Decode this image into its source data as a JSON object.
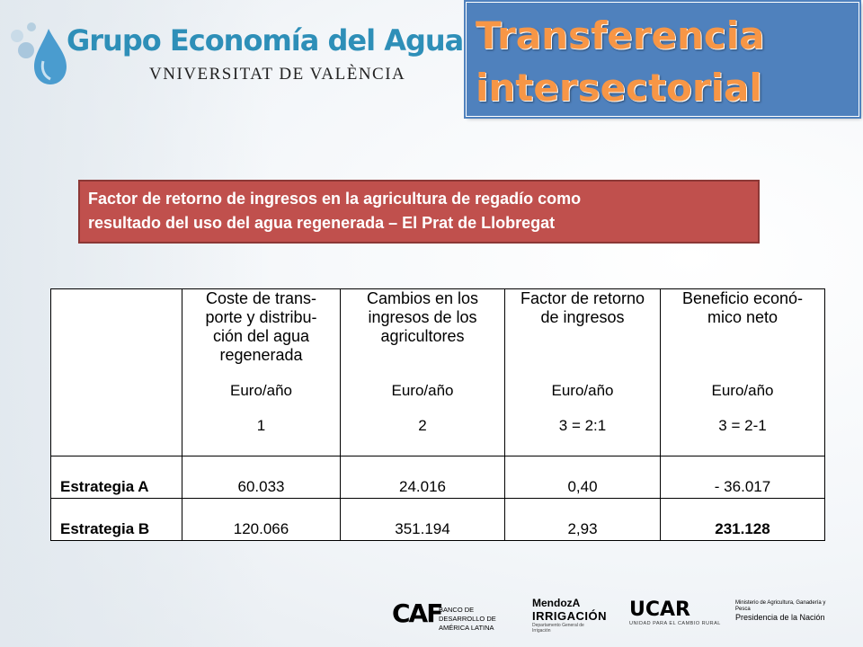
{
  "logo": {
    "title": "Grupo Economía del Agua",
    "subtitle": "VNIVERSITAT DE VALÈNCIA",
    "icon": "water-drops-icon"
  },
  "title": {
    "line1": "Transferencia",
    "line2": "intersectorial"
  },
  "subtitle": {
    "line1": "Factor de retorno de ingresos en la agricultura de regadío como",
    "line2": "resultado del uso del agua regenerada –  El Prat de Llobregat"
  },
  "table": {
    "columns": [
      {
        "title_lines": [
          "Coste de trans-",
          "porte y distribu-",
          "ción del agua",
          "regenerada"
        ],
        "unit": "Euro/año",
        "num": "1"
      },
      {
        "title_lines": [
          "Cambios en los",
          "ingresos de los",
          "agricultores"
        ],
        "unit": "Euro/año",
        "num": "2"
      },
      {
        "title_lines": [
          "Factor de retorno",
          "de ingresos"
        ],
        "unit": "Euro/año",
        "num": "3 = 2:1"
      },
      {
        "title_lines": [
          "Beneficio econó-",
          "mico  neto"
        ],
        "unit": "Euro/año",
        "num": "3 = 2-1"
      }
    ],
    "rows": [
      {
        "label": "Estrategia A",
        "values": [
          "60.033",
          "24.016",
          "0,40",
          "- 36.017"
        ]
      },
      {
        "label": "Estrategia B",
        "values": [
          "120.066",
          "351.194",
          "2,93",
          "231.128"
        ]
      }
    ]
  },
  "sponsors": {
    "caf": {
      "mark": "CAF",
      "text": "BANCO DE DESARROLLO DE AMÉRICA LATINA"
    },
    "mendoza": {
      "line1": "MendozA",
      "line2": "IRRIGACIÓN",
      "line3": "Departamento General de Irrigación"
    },
    "ucar": {
      "mark": "UCAR",
      "sub": "UNIDAD PARA EL CAMBIO RURAL"
    },
    "ministerio": {
      "line1": "Ministerio de Agricultura, Ganadería y Pesca",
      "line2": "Presidencia de la Nación"
    }
  },
  "colors": {
    "title_bg": "#4f81bd",
    "title_text": "#f79646",
    "subtitle_bg": "#c0504d",
    "logo_blue": "#2e8fb8"
  }
}
